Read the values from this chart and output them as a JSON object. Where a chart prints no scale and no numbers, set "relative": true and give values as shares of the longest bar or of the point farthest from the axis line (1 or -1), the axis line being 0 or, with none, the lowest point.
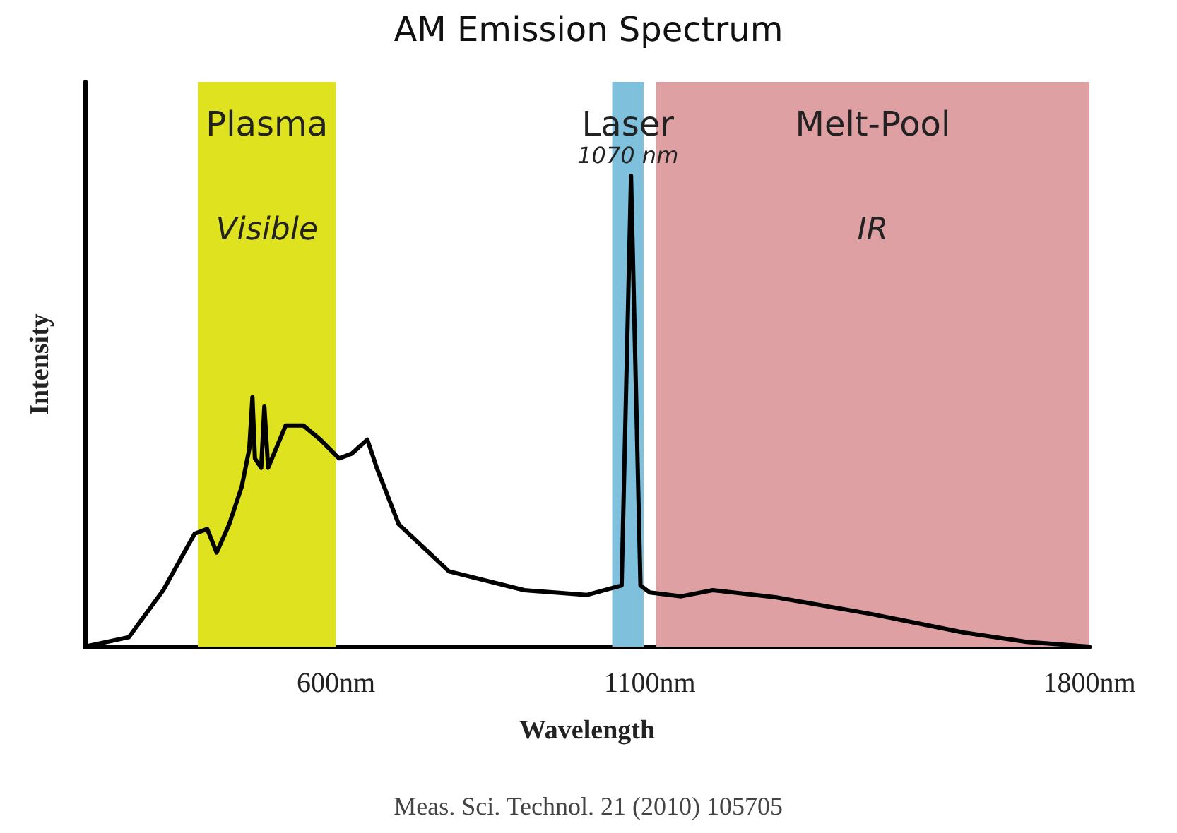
{
  "chart_data": {
    "type": "line",
    "title": "AM Emission Spectrum",
    "xlabel": "Wavelength",
    "ylabel": "Intensity",
    "relative": true,
    "x": [
      200,
      270,
      325,
      375,
      395,
      410,
      430,
      450,
      462,
      467,
      471,
      481,
      486,
      492,
      520,
      548,
      575,
      605,
      625,
      650,
      665,
      700,
      780,
      900,
      1000,
      1055,
      1070,
      1085,
      1100,
      1150,
      1200,
      1300,
      1450,
      1600,
      1700,
      1800
    ],
    "series": [
      {
        "color": "#000000",
        "values": [
          0,
          0.02,
          0.12,
          0.24,
          0.25,
          0.2,
          0.26,
          0.34,
          0.42,
          0.53,
          0.4,
          0.38,
          0.51,
          0.38,
          0.47,
          0.47,
          0.44,
          0.4,
          0.41,
          0.44,
          0.38,
          0.26,
          0.16,
          0.12,
          0.11,
          0.13,
          1,
          0.13,
          0.115,
          0.107,
          0.12,
          0.105,
          0.07,
          0.03,
          0.01,
          0
        ]
      }
    ],
    "xlim": [
      200,
      1800
    ],
    "xticks": [
      {
        "value": 600,
        "label": "600nm"
      },
      {
        "value": 1100,
        "label": "1100nm"
      },
      {
        "value": 1800,
        "label": "1800nm"
      }
    ],
    "bands": [
      {
        "axis": "x",
        "from": 380,
        "to": 600,
        "label": "Plasma",
        "color": "#dfe21f"
      },
      {
        "axis": "x",
        "from": 1040,
        "to": 1090,
        "label": "Laser",
        "color": "#7fc0dc"
      },
      {
        "axis": "x",
        "from": 1110,
        "to": 1800,
        "label": "Melt-Pool",
        "color": "#dfa0a3"
      }
    ],
    "annotations": [
      "Visible",
      "1070 nm",
      "IR",
      "Meas. Sci. Technol. 21 (2010) 105705"
    ],
    "grid": false,
    "marker": "none",
    "line_style": "solid"
  }
}
